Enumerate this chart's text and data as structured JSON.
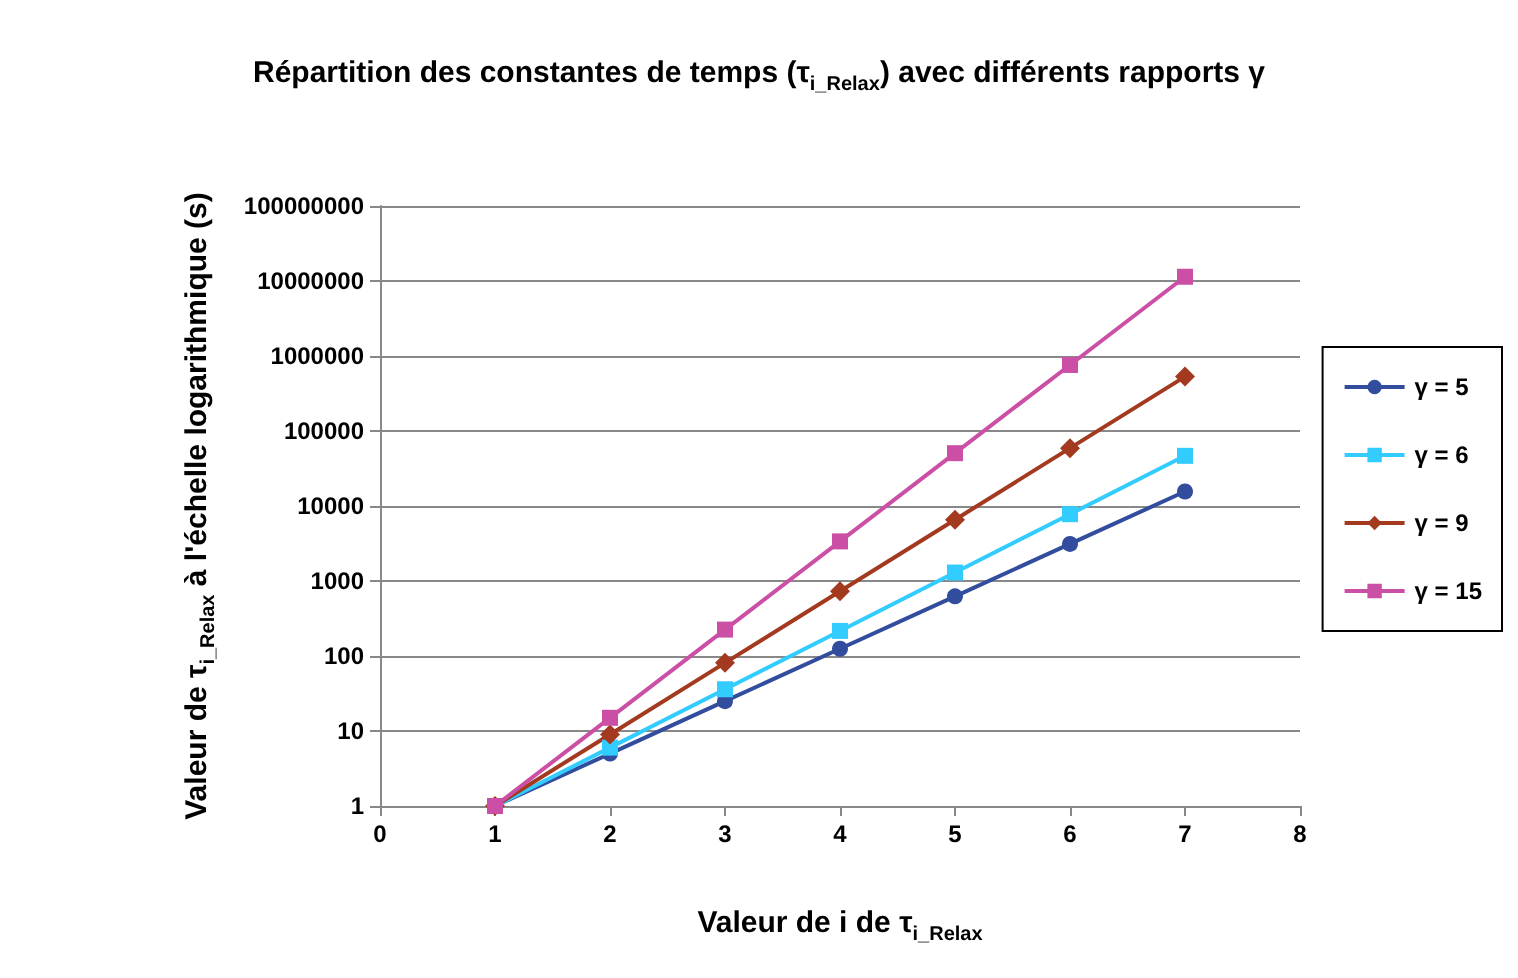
{
  "chart_data": {
    "type": "line",
    "title": "Répartition des constantes de temps (τ$_{i_Relax}$) avec différents rapports γ",
    "xlabel": "Valeur de i de τ$_{i_Relax}$",
    "ylabel": "Valeur de τ$_{i_Relax}$ à l'échelle logarithmique (s)",
    "x": [
      1,
      2,
      3,
      4,
      5,
      6,
      7
    ],
    "series": [
      {
        "name": "γ = 5",
        "color": "#334d9e",
        "marker": "circle",
        "values": [
          1,
          5,
          25,
          125,
          625,
          3125,
          15625
        ]
      },
      {
        "name": "γ = 6",
        "color": "#33ccff",
        "marker": "square",
        "values": [
          1,
          6,
          36,
          216,
          1296,
          7776,
          46656
        ]
      },
      {
        "name": "γ = 9",
        "color": "#a33a1f",
        "marker": "diamond",
        "values": [
          1,
          9,
          81,
          729,
          6561,
          59049,
          531441
        ]
      },
      {
        "name": "γ = 15",
        "color": "#cc4fa6",
        "marker": "square",
        "values": [
          1,
          15,
          225,
          3375,
          50625,
          759375,
          11390625
        ]
      }
    ],
    "xlim": [
      0,
      8
    ],
    "xticks": [
      0,
      1,
      2,
      3,
      4,
      5,
      6,
      7,
      8
    ],
    "ylim": [
      1,
      100000000
    ],
    "yticks": [
      1,
      10,
      100,
      1000,
      10000,
      100000,
      1000000,
      10000000,
      100000000
    ],
    "log": "y",
    "grid": "y",
    "legend": "right",
    "line_style": "solid"
  }
}
